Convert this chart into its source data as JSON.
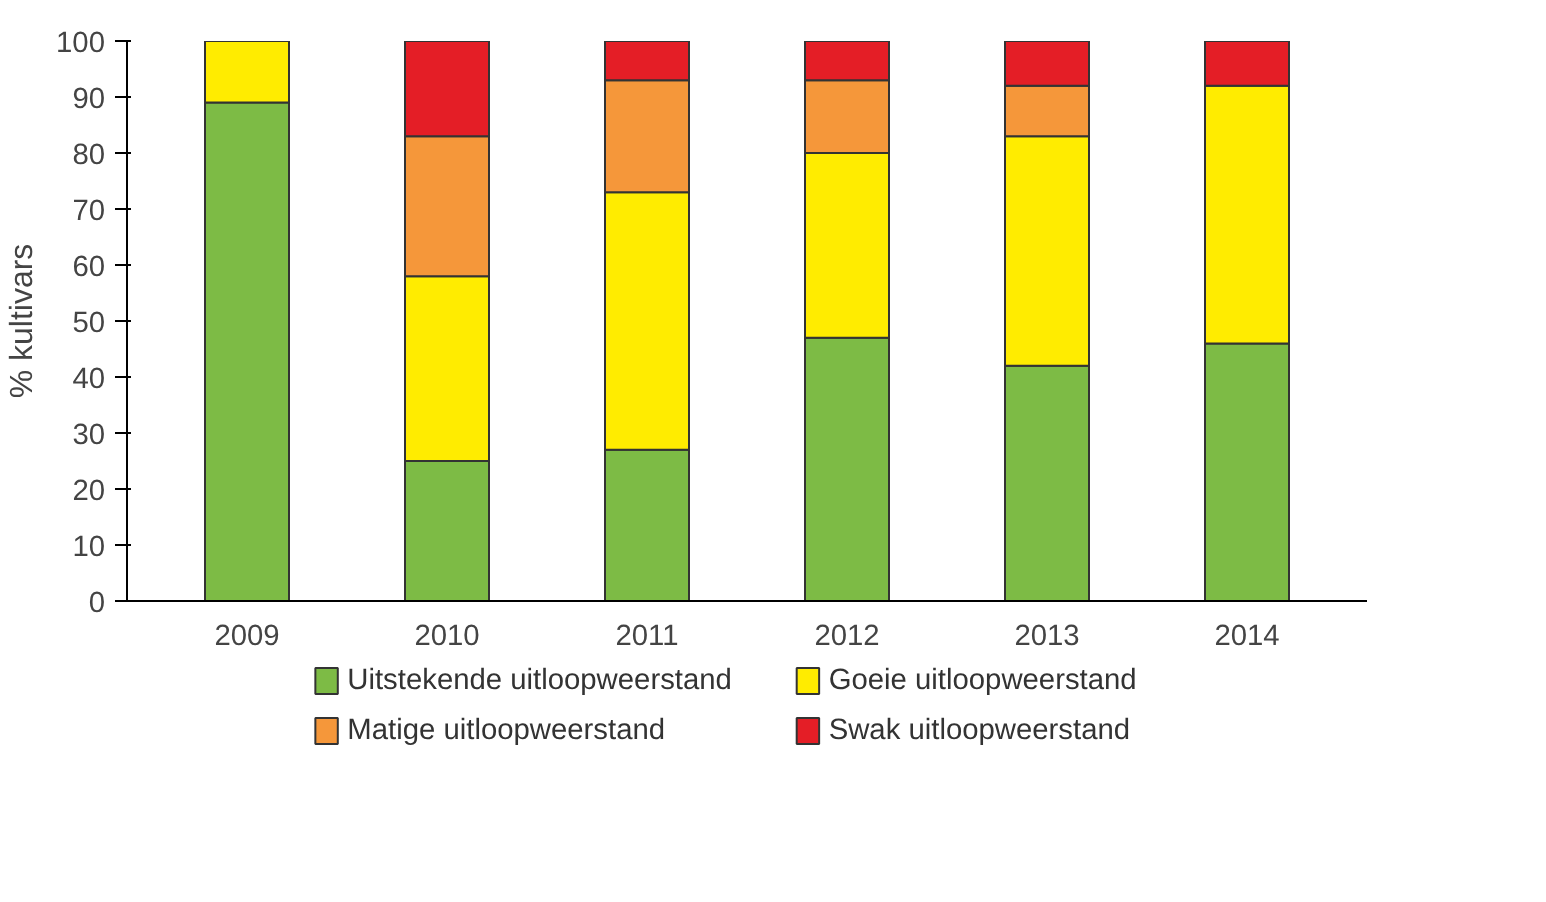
{
  "chart_data": {
    "type": "bar",
    "stacked": true,
    "ylabel": "% kultivars",
    "categories": [
      "2009",
      "2010",
      "2011",
      "2012",
      "2013",
      "2014"
    ],
    "series": [
      {
        "name": "Uitstekende uitloopweerstand",
        "color": "#7dbb45",
        "values": [
          89,
          25,
          27,
          47,
          42,
          46
        ]
      },
      {
        "name": "Goeie uitloopweerstand",
        "color": "#ffec00",
        "values": [
          11,
          33,
          46,
          33,
          41,
          46
        ]
      },
      {
        "name": "Matige uitloopweerstand",
        "color": "#f5973a",
        "values": [
          0,
          25,
          20,
          13,
          9,
          0
        ]
      },
      {
        "name": "Swak uitloopweerstand",
        "color": "#e41e26",
        "values": [
          0,
          17,
          7,
          7,
          8,
          8
        ]
      }
    ],
    "ylim": [
      0,
      100
    ],
    "yticks": [
      0,
      10,
      20,
      30,
      40,
      50,
      60,
      70,
      80,
      90,
      100
    ],
    "grid": false,
    "legend": "bottom"
  }
}
